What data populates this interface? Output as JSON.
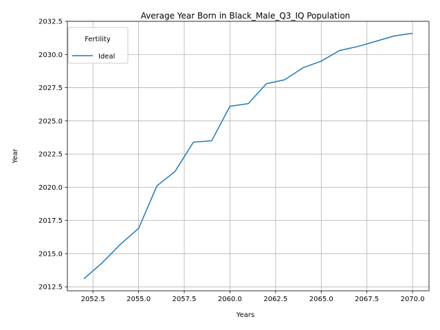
{
  "chart_data": {
    "type": "line",
    "title": "Average Year Born in Black_Male_Q3_IQ Population",
    "xlabel": "Years",
    "ylabel": "Year",
    "xlim": [
      2051.1,
      2070.9
    ],
    "ylim": [
      2012.2,
      2032.5
    ],
    "xticks": [
      2052.5,
      2055.0,
      2057.5,
      2060.0,
      2062.5,
      2065.0,
      2067.5,
      2070.0
    ],
    "xtick_labels": [
      "2052.5",
      "2055.0",
      "2057.5",
      "2060.0",
      "2062.5",
      "2065.0",
      "2067.5",
      "2070.0"
    ],
    "yticks": [
      2012.5,
      2015.0,
      2017.5,
      2020.0,
      2022.5,
      2025.0,
      2027.5,
      2030.0,
      2032.5
    ],
    "ytick_labels": [
      "2012.5",
      "2015.0",
      "2017.5",
      "2020.0",
      "2022.5",
      "2025.0",
      "2027.5",
      "2030.0",
      "2032.5"
    ],
    "grid": true,
    "legend": {
      "title": "Fertility",
      "position": "top-left"
    },
    "x": [
      2052,
      2053,
      2054,
      2055,
      2056,
      2057,
      2058,
      2059,
      2060,
      2061,
      2062,
      2063,
      2064,
      2065,
      2066,
      2067,
      2068,
      2069,
      2070
    ],
    "series": [
      {
        "name": "Ideal",
        "color": "#1f77b4",
        "values": [
          2013.1,
          2014.3,
          2015.7,
          2016.9,
          2020.1,
          2021.2,
          2023.4,
          2023.5,
          2026.1,
          2026.3,
          2027.8,
          2028.1,
          2029.0,
          2029.5,
          2030.3,
          2030.6,
          2031.0,
          2031.4,
          2031.6
        ]
      }
    ]
  }
}
